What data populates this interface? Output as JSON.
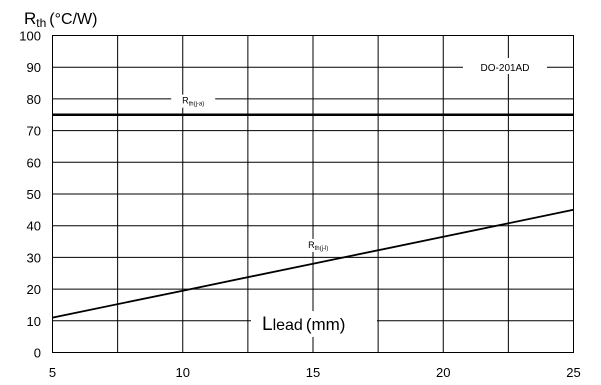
{
  "chart_data": {
    "type": "line",
    "xlabel_main": "L",
    "xlabel_sub": "lead",
    "xlabel_unit": "(mm)",
    "ylabel_main": "R",
    "ylabel_sub": "th",
    "ylabel_unit": "(°C/W)",
    "package_label": "DO-201AD",
    "xlim": [
      5,
      25
    ],
    "ylim": [
      0,
      100
    ],
    "x_ticks": [
      5,
      10,
      15,
      20,
      25
    ],
    "y_ticks": [
      0,
      10,
      20,
      30,
      40,
      50,
      60,
      70,
      80,
      90,
      100
    ],
    "x_grid": [
      5,
      7.5,
      10,
      12.5,
      15,
      17.5,
      20,
      22.5,
      25
    ],
    "grid": true,
    "series": [
      {
        "label_main": "R",
        "label_sub": "th(j-a)",
        "x": [
          5,
          25
        ],
        "y": [
          75,
          75
        ],
        "label_at": [
          10.4,
          78.5
        ]
      },
      {
        "label_main": "R",
        "label_sub": "th(j-l)",
        "x": [
          5,
          10,
          15,
          20,
          25
        ],
        "y": [
          11,
          19.5,
          28,
          36.5,
          45
        ],
        "label_at": [
          15.2,
          33
        ]
      }
    ]
  }
}
